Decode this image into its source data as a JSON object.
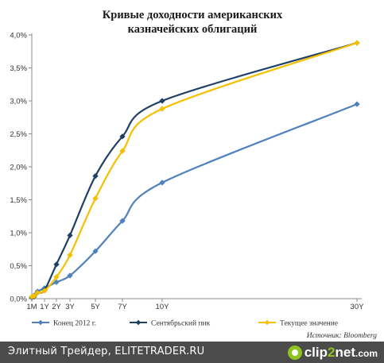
{
  "chart_data": {
    "type": "line",
    "title_lines": [
      "Кривые доходности американских",
      "казначейских облигаций"
    ],
    "x_categories": [
      "1M",
      "1Y",
      "2Y",
      "3Y",
      "5Y",
      "7Y",
      "10Y",
      "30Y"
    ],
    "x_maturity_years": [
      0.0833,
      1,
      2,
      3,
      5,
      7,
      10,
      30
    ],
    "y_ticks": [
      "0,0%",
      "0,5%",
      "1,0%",
      "1,5%",
      "2,0%",
      "2,5%",
      "3,0%",
      "3,5%",
      "4,0%"
    ],
    "ylim": [
      0,
      4.0
    ],
    "y_unit": "%",
    "grid": false,
    "legend_position": "bottom",
    "series": [
      {
        "name": "Конец 2012 г.",
        "color": "#4f81bd",
        "x": [
          0.0833,
          0.25,
          0.5,
          1,
          2,
          3,
          5,
          7,
          10,
          30
        ],
        "values": [
          0.02,
          0.05,
          0.11,
          0.16,
          0.25,
          0.35,
          0.72,
          1.18,
          1.76,
          2.95
        ]
      },
      {
        "name": "Сентябрьский пик",
        "color": "#1f3f66",
        "x": [
          0.0833,
          0.25,
          0.5,
          1,
          2,
          3,
          5,
          7,
          10,
          30
        ],
        "values": [
          0.02,
          0.03,
          0.09,
          0.13,
          0.52,
          0.96,
          1.86,
          2.46,
          3.0,
          3.88
        ]
      },
      {
        "name": "Текущее значение",
        "color": "#f5c000",
        "x": [
          0.0833,
          0.25,
          0.5,
          1,
          2,
          3,
          5,
          7,
          10,
          30
        ],
        "values": [
          0.03,
          0.04,
          0.09,
          0.12,
          0.33,
          0.66,
          1.52,
          2.24,
          2.88,
          3.88
        ]
      }
    ]
  },
  "source_note": "Источник: Bloomberg",
  "footer": {
    "text": "Элитный Трейдер, ELITETRADER.RU",
    "logo_parts": [
      "clip",
      "2",
      "net",
      ".com"
    ],
    "logo_accent_color": "#8fc31f"
  }
}
